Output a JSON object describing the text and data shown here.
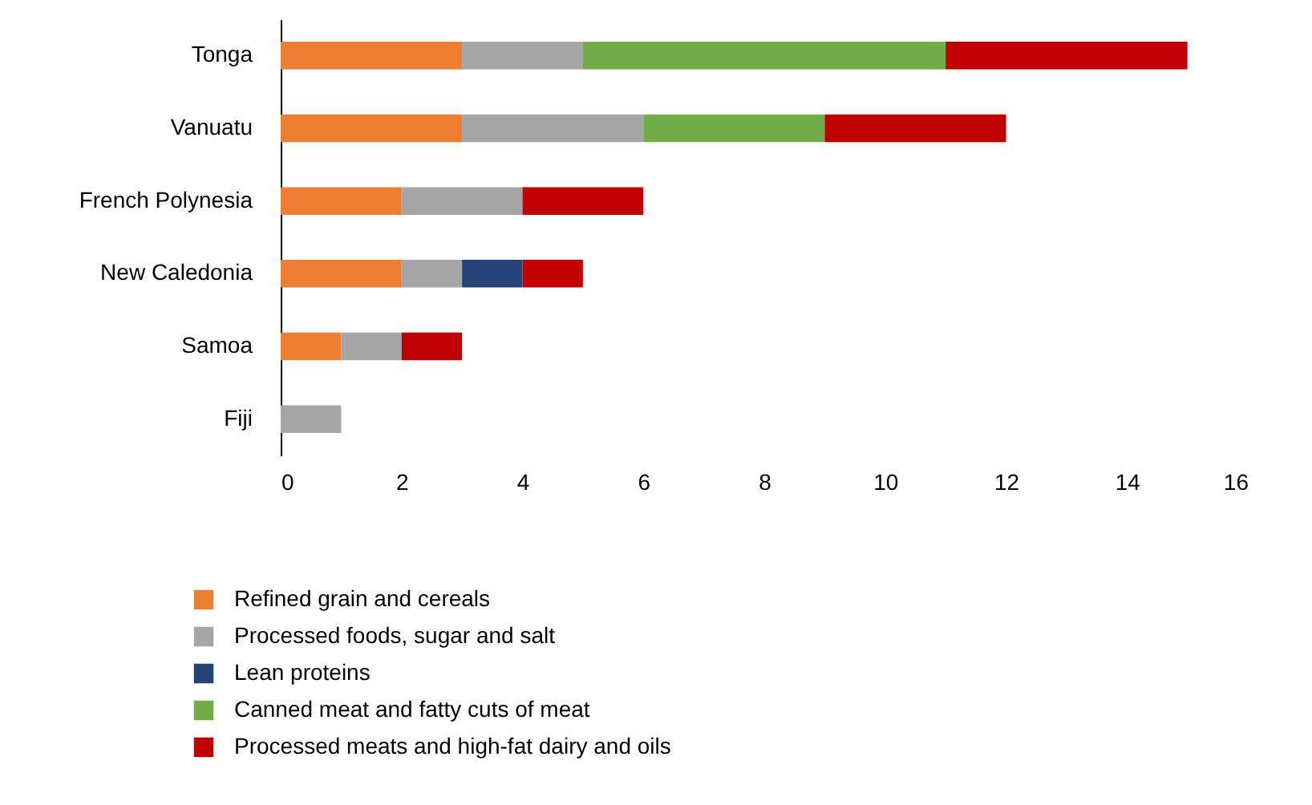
{
  "chart_data": {
    "type": "bar",
    "orientation": "horizontal",
    "stacked": true,
    "categories": [
      "Tonga",
      "Vanuatu",
      "French Polynesia",
      "New Caledonia",
      "Samoa",
      "Fiji"
    ],
    "series": [
      {
        "name": "Refined grain and cereals",
        "color": "#ed7d31",
        "values": [
          3,
          3,
          2,
          2,
          1,
          null
        ]
      },
      {
        "name": "Processed foods, sugar and salt",
        "color": "#a5a5a5",
        "values": [
          2,
          3,
          2,
          1,
          1,
          1
        ]
      },
      {
        "name": "Lean proteins",
        "color": "#264478",
        "values": [
          null,
          null,
          null,
          1,
          null,
          null
        ]
      },
      {
        "name": "Canned meat and fatty cuts of meat",
        "color": "#70ad47",
        "values": [
          6,
          3,
          null,
          null,
          null,
          null
        ]
      },
      {
        "name": "Processed meats and high-fat dairy and oils",
        "color": "#c00000",
        "values": [
          4,
          3,
          2,
          1,
          1,
          null
        ]
      }
    ],
    "xlim": [
      0,
      16
    ],
    "xticks": [
      0,
      2,
      4,
      6,
      8,
      10,
      12,
      14,
      16
    ],
    "grid": false,
    "legend": "bottom"
  }
}
